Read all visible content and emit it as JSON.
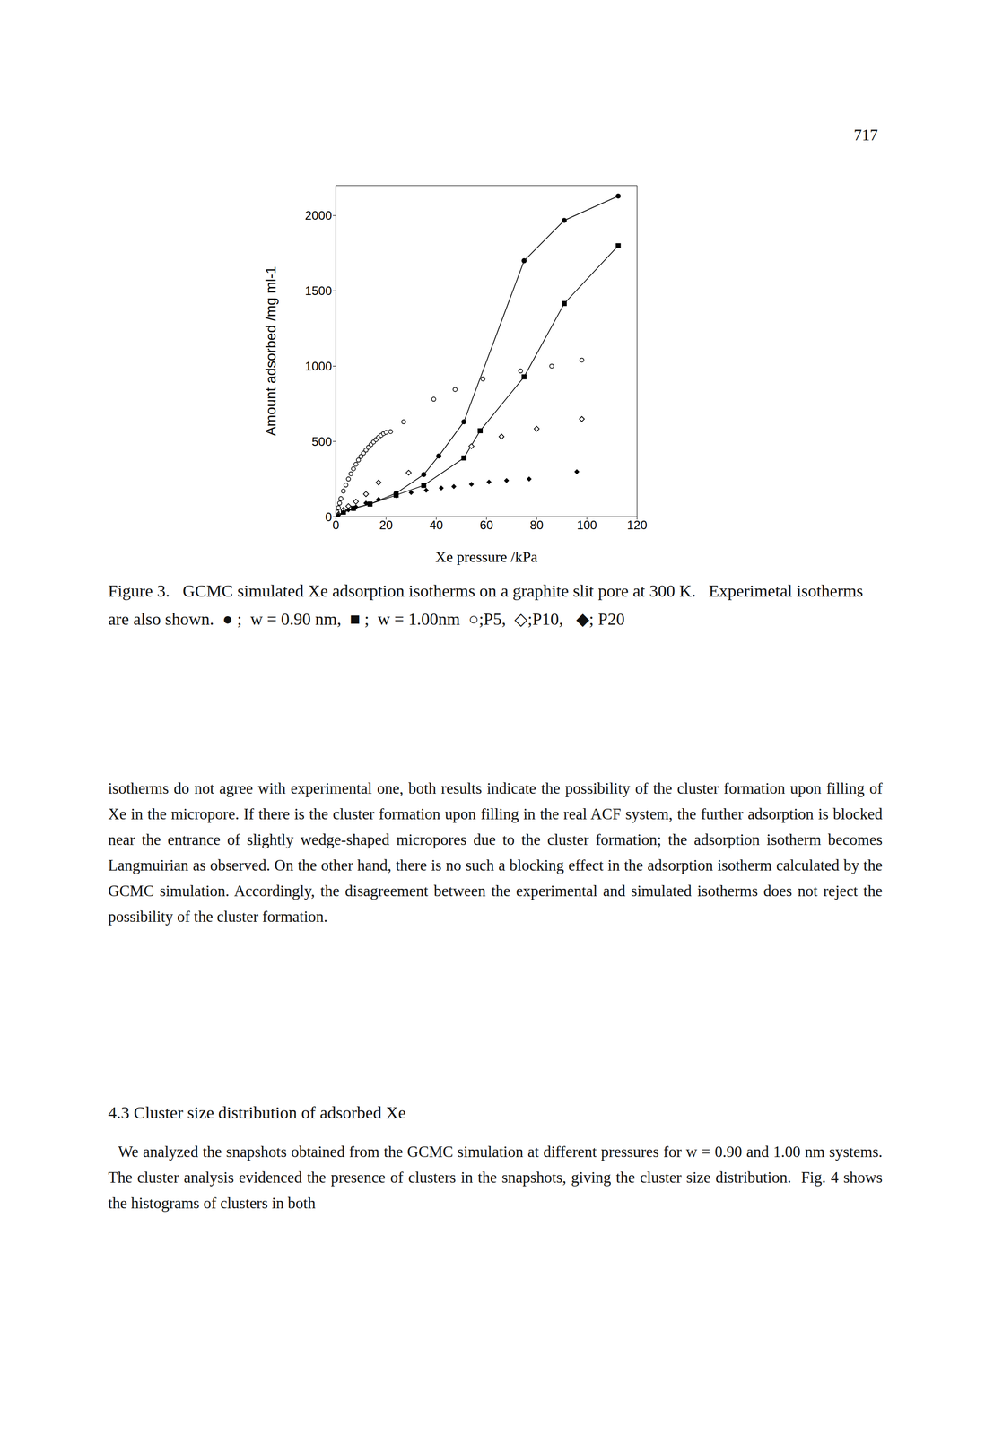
{
  "page_number": "717",
  "chart_data": {
    "type": "scatter",
    "x_label": "Xe pressure /kPa",
    "y_label": "Amount adsorbed /mg ml-1",
    "xlim": [
      0,
      120
    ],
    "xticks": [
      0,
      20,
      40,
      60,
      80,
      100,
      120
    ],
    "ylim": [
      0,
      2200
    ],
    "yticks": [
      0,
      500,
      1000,
      1500,
      2000
    ],
    "series": [
      {
        "name": "w= 0.90 nm",
        "color": "#000000",
        "marker": "circle",
        "line_style": "solid",
        "x": [
          0,
          3,
          7,
          13.6,
          24,
          35,
          41,
          51,
          75,
          91,
          112.5
        ],
        "values": [
          0,
          30,
          55,
          84,
          156,
          280,
          403,
          630,
          1700,
          1968,
          2130
        ]
      },
      {
        "name": "w= 1.00nm",
        "color": "#000000",
        "marker": "square",
        "line_style": "solid",
        "x": [
          0,
          3,
          7,
          13.6,
          24,
          35,
          51,
          57.5,
          75,
          91,
          112.5
        ],
        "values": [
          0,
          30,
          55,
          84,
          143,
          208,
          390,
          571,
          929,
          1416,
          1800
        ]
      },
      {
        "name": "P5",
        "color": "#000000",
        "marker": "circle-open",
        "line_style": "none",
        "x": [
          0.5,
          1,
          1.5,
          2,
          3,
          4,
          5,
          6,
          7,
          8,
          9,
          10,
          11,
          12,
          13,
          14,
          15,
          16,
          17,
          18,
          19,
          20,
          21.8,
          27,
          39,
          47.5,
          58.6,
          73.6,
          86,
          98
        ],
        "values": [
          30,
          60,
          90,
          120,
          170,
          210,
          250,
          285,
          318,
          348,
          376,
          400,
          422,
          442,
          461,
          479,
          496,
          512,
          527,
          540,
          552,
          560,
          565,
          630,
          780,
          845,
          915,
          968,
          1000,
          1040
        ]
      },
      {
        "name": "P10",
        "color": "#000000",
        "marker": "diamond-open",
        "line_style": "none",
        "x": [
          1,
          3,
          5,
          8,
          12,
          17,
          29,
          54,
          66,
          80,
          98
        ],
        "values": [
          15,
          45,
          70,
          100,
          150,
          227,
          292,
          468,
          532,
          584,
          649
        ]
      },
      {
        "name": "P20",
        "color": "#000000",
        "marker": "diamond",
        "line_style": "none",
        "x": [
          1,
          3,
          5,
          8,
          12,
          17,
          24,
          30,
          36,
          42,
          47,
          54,
          61,
          68,
          77,
          96
        ],
        "values": [
          10,
          30,
          45,
          65,
          90,
          115,
          140,
          160,
          175,
          190,
          200,
          215,
          230,
          240,
          250,
          299
        ]
      }
    ]
  },
  "caption": "Figure 3.   GCMC simulated Xe adsorption isotherms on a graphite slit pore at 300 K.   Experimetal isotherms are also shown.  ● ;  w = 0.90 nm,  ■ ;  w = 1.00nm  ○;P5,  ◇;P10,   ◆; P20",
  "paragraphs": [
    "isotherms do not agree with experimental one, both results indicate the possibility of the cluster formation upon filling of Xe in the micropore. If there is the cluster formation upon filling in the real ACF system, the further adsorption is blocked near the entrance of slightly wedge-shaped micropores due to the cluster formation; the adsorption isotherm becomes Langmuirian as observed. On the other hand, there is no such a blocking effect in the adsorption isotherm calculated by the GCMC simulation. Accordingly, the disagreement between the experimental and simulated isotherms does not reject the possibility of the cluster formation."
  ],
  "section": {
    "heading": "4.3 Cluster size distribution of adsorbed Xe",
    "paragraphs": [
      "We analyzed the snapshots obtained from the GCMC simulation at different pressures for w = 0.90 and 1.00 nm systems.  The cluster analysis evidenced the presence of clusters in the snapshots, giving the cluster size distribution.  Fig. 4 shows the histograms of clusters in both"
    ]
  }
}
